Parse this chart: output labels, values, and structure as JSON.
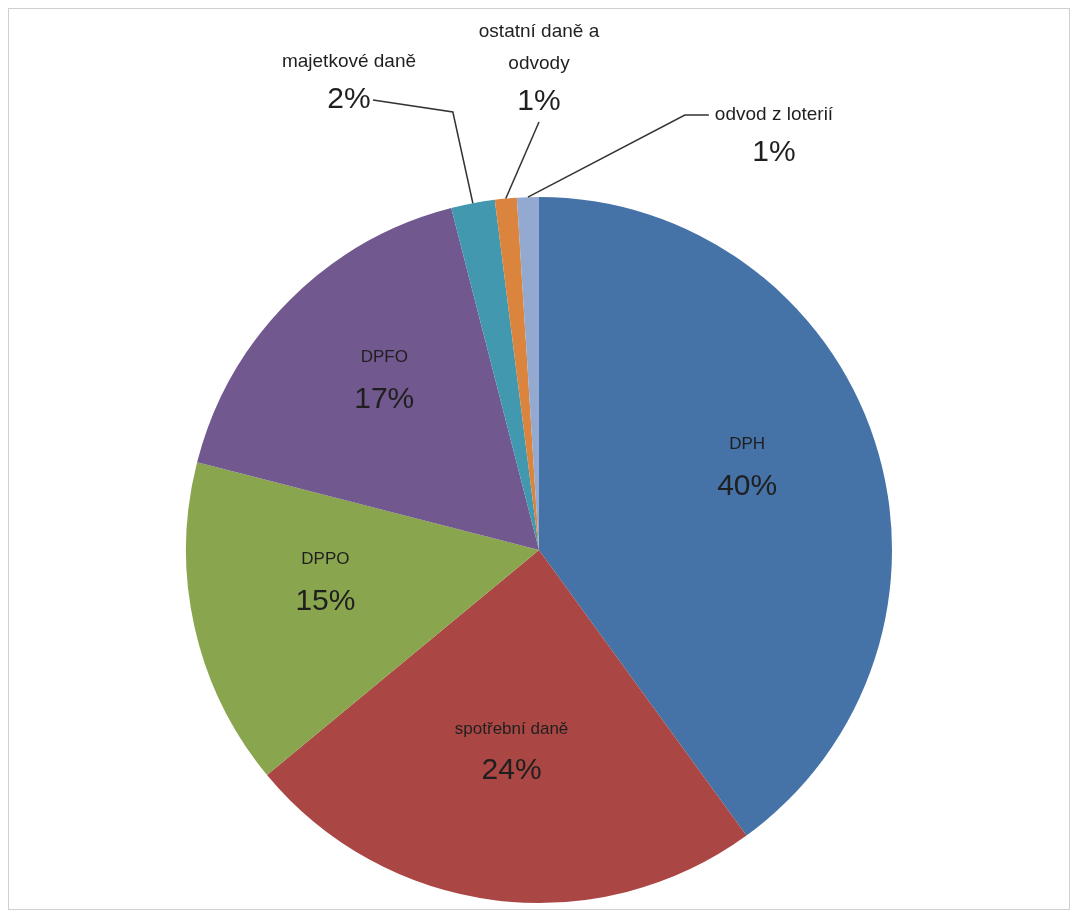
{
  "chart_data": {
    "type": "pie",
    "categories": [
      "DPH",
      "spotřební daně",
      "DPPO",
      "DPFO",
      "majetkové daně",
      "ostatní daně a odvody",
      "odvod z loterií"
    ],
    "values": [
      40,
      24,
      15,
      17,
      2,
      1,
      1
    ],
    "value_labels": [
      "40%",
      "24%",
      "15%",
      "17%",
      "2%",
      "1%",
      "1%"
    ],
    "colors": [
      "#4572a7",
      "#aa4643",
      "#89a54e",
      "#71588f",
      "#4198af",
      "#db843d",
      "#93a9cf"
    ],
    "legend": false
  }
}
